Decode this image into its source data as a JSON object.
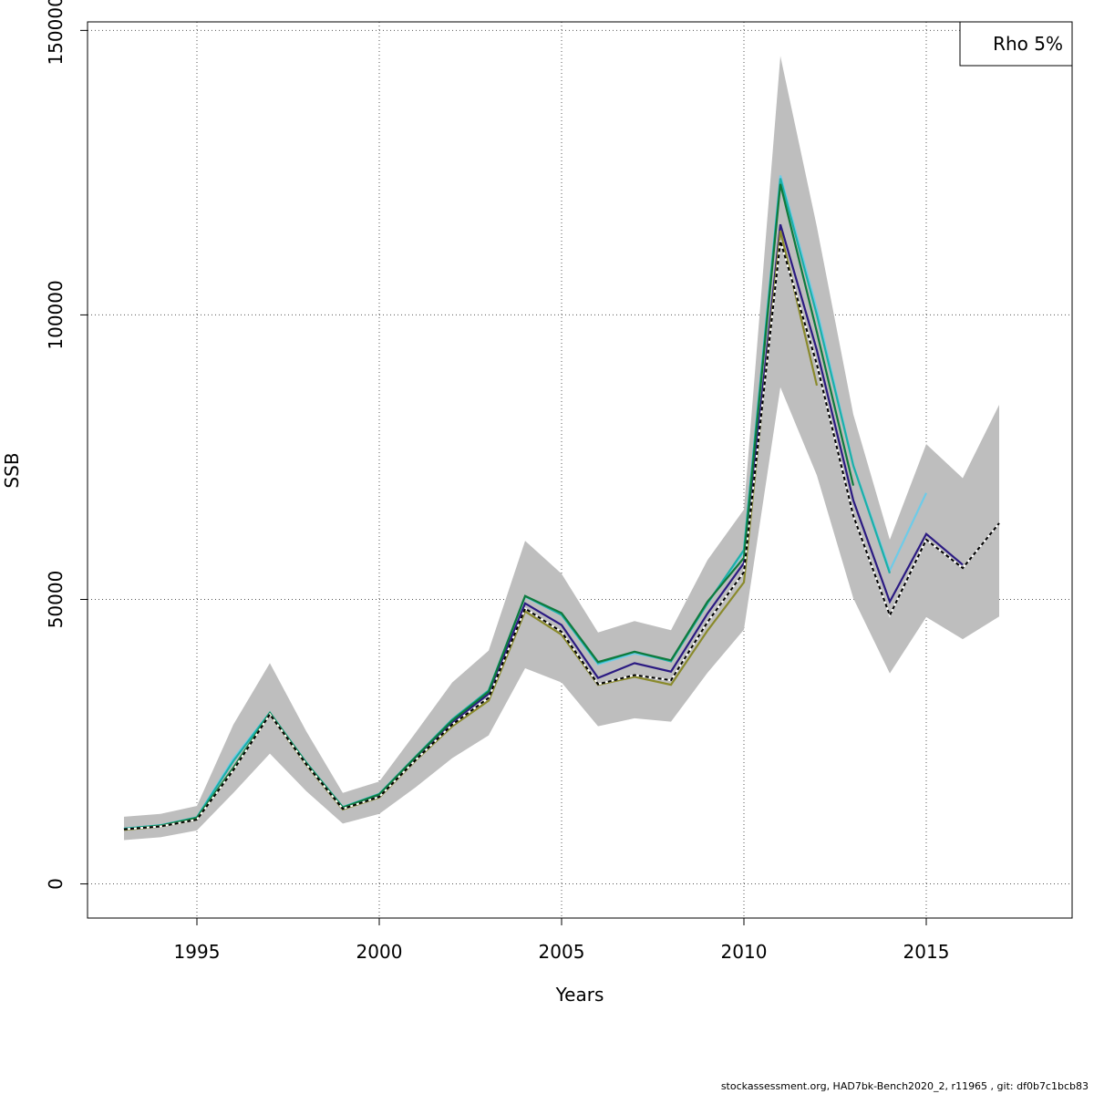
{
  "footer": "stockassessment.org, HAD7bk-Bench2020_2, r11965 , git: df0b7c1bcb83",
  "chart_data": {
    "type": "line",
    "title": "",
    "xlabel": "Years",
    "ylabel": "SSB",
    "xlim": [
      1992,
      2019
    ],
    "ylim": [
      -6000,
      151500
    ],
    "x_ticks": [
      1995,
      2000,
      2005,
      2010,
      2015
    ],
    "x_tick_labels": [
      "1995",
      "2000",
      "2005",
      "2010",
      "2015"
    ],
    "y_ticks": [
      0,
      50000,
      100000,
      150000
    ],
    "y_tick_labels": [
      "0",
      "50000",
      "100000",
      "150000"
    ],
    "grid": true,
    "legend": {
      "position": "top-right",
      "entries": [
        "Rho 5%"
      ]
    },
    "band": {
      "color": "#bebebe",
      "x": [
        1993,
        1994,
        1995,
        1996,
        1997,
        1998,
        1999,
        2000,
        2001,
        2002,
        2003,
        2004,
        2005,
        2006,
        2007,
        2008,
        2009,
        2010,
        2011,
        2012,
        2013,
        2014,
        2015,
        2016,
        2017
      ],
      "upper": [
        11800,
        12300,
        13700,
        28000,
        38800,
        26800,
        16000,
        18000,
        26600,
        35400,
        41000,
        60300,
        54500,
        44200,
        46200,
        44600,
        56900,
        65800,
        145500,
        115500,
        82500,
        60500,
        77300,
        71300,
        84200
      ],
      "lower": [
        7700,
        8200,
        9400,
        16000,
        22900,
        16300,
        10600,
        12300,
        17000,
        22100,
        26100,
        37900,
        35400,
        27700,
        29100,
        28500,
        37100,
        44700,
        87300,
        71800,
        50200,
        37000,
        46900,
        43000,
        47000
      ]
    },
    "series": [
      {
        "color": "#000000",
        "dashed": true,
        "x": [
          1993,
          1994,
          1995,
          1996,
          1997,
          1998,
          1999,
          2000,
          2001,
          2002,
          2003,
          2004,
          2005,
          2006,
          2007,
          2008,
          2009,
          2010,
          2011,
          2012,
          2013,
          2014,
          2015,
          2016,
          2017
        ],
        "values": [
          9600,
          10100,
          11300,
          20000,
          29800,
          21000,
          13200,
          15300,
          21800,
          28000,
          32700,
          48400,
          44300,
          35100,
          36700,
          35800,
          46000,
          54800,
          113000,
          91300,
          64700,
          47200,
          60500,
          55500,
          63400
        ]
      },
      {
        "color": "#2b1a82",
        "x": [
          1993,
          1994,
          1995,
          1996,
          1997,
          1998,
          1999,
          2000,
          2001,
          2002,
          2003,
          2004,
          2005,
          2006,
          2007,
          2008,
          2009,
          2010,
          2011,
          2012,
          2013,
          2014,
          2015,
          2016
        ],
        "values": [
          9600,
          10200,
          11500,
          20200,
          29900,
          21100,
          13300,
          15600,
          22100,
          28400,
          33400,
          49300,
          45500,
          36200,
          38800,
          37300,
          47500,
          56400,
          115900,
          93800,
          67400,
          49600,
          61500,
          56100
        ]
      },
      {
        "color": "#6ecbe8",
        "x": [
          1993,
          1994,
          1995,
          1996,
          1997,
          1998,
          1999,
          2000,
          2001,
          2002,
          2003,
          2004,
          2005,
          2006,
          2007,
          2008,
          2009,
          2010,
          2011,
          2012,
          2013,
          2014,
          2015
        ],
        "values": [
          9700,
          10300,
          11700,
          22000,
          30100,
          21300,
          13500,
          15800,
          22400,
          28900,
          34000,
          50500,
          47300,
          38600,
          40500,
          39300,
          49300,
          58400,
          124500,
          101000,
          73600,
          55100,
          68700
        ]
      },
      {
        "color": "#1bb0a8",
        "x": [
          1993,
          1994,
          1995,
          1996,
          1997,
          1998,
          1999,
          2000,
          2001,
          2002,
          2003,
          2004,
          2005,
          2006,
          2007,
          2008,
          2009,
          2010,
          2011,
          2012,
          2013,
          2014
        ],
        "values": [
          9700,
          10300,
          11700,
          21600,
          30100,
          21300,
          13500,
          15800,
          22400,
          28900,
          34000,
          50600,
          47300,
          38800,
          40800,
          39100,
          49300,
          58700,
          124000,
          100000,
          73500,
          54600
        ]
      },
      {
        "color": "#0f7a3c",
        "x": [
          1993,
          1994,
          1995,
          1996,
          1997,
          1998,
          1999,
          2000,
          2001,
          2002,
          2003,
          2004,
          2005,
          2006,
          2007,
          2008,
          2009,
          2010,
          2011,
          2012,
          2013
        ],
        "values": [
          9600,
          10200,
          11600,
          20400,
          30000,
          21200,
          13400,
          15700,
          22300,
          28700,
          33800,
          50600,
          47600,
          39000,
          40800,
          39300,
          49600,
          57300,
          123000,
          97000,
          70000
        ]
      },
      {
        "color": "#8a8a2c",
        "x": [
          1993,
          1994,
          1995,
          1996,
          1997,
          1998,
          1999,
          2000,
          2001,
          2002,
          2003,
          2004,
          2005,
          2006,
          2007,
          2008,
          2009,
          2010,
          2011,
          2012
        ],
        "values": [
          9500,
          10100,
          11300,
          20000,
          29800,
          20900,
          13100,
          15200,
          21700,
          27700,
          32200,
          47900,
          43800,
          35000,
          36400,
          35000,
          44500,
          53000,
          114800,
          87600
        ]
      }
    ]
  }
}
